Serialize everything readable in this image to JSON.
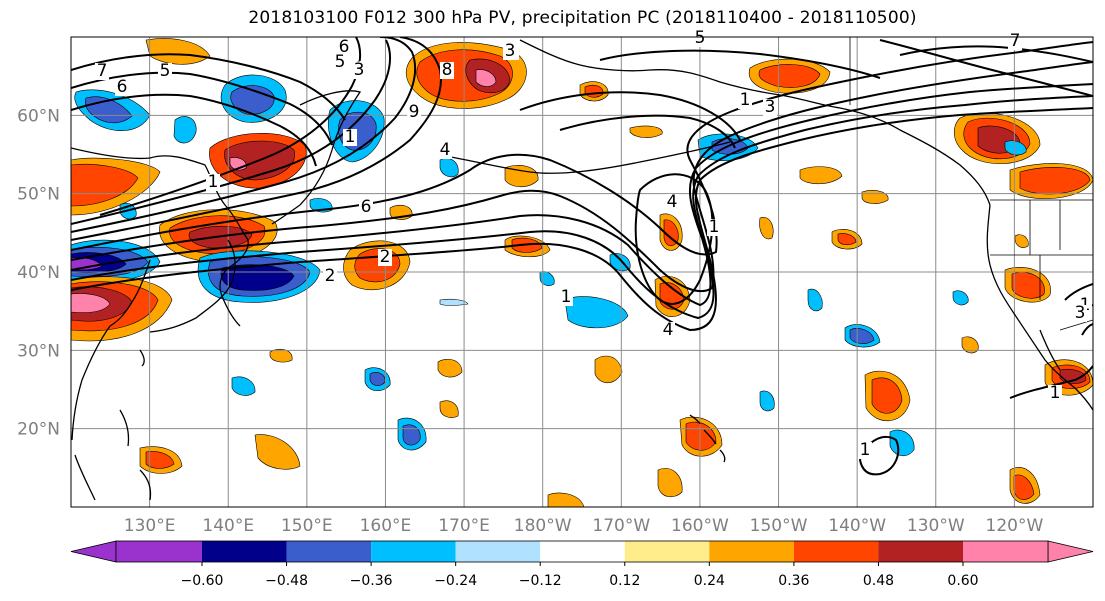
{
  "title": "2018103100 F012 300 hPa PV, precipitation PC (2018110400 - 2018110500)",
  "map": {
    "lat_range": [
      10,
      70
    ],
    "lon_range": [
      120,
      250
    ],
    "lat_labels": [
      "60°N",
      "50°N",
      "40°N",
      "30°N",
      "20°N"
    ],
    "lat_values": [
      60,
      50,
      40,
      30,
      20
    ],
    "lon_labels": [
      "130°E",
      "140°E",
      "150°E",
      "160°E",
      "170°E",
      "180°W",
      "170°W",
      "160°W",
      "150°W",
      "140°W",
      "130°W",
      "120°W"
    ],
    "lon_values": [
      130,
      140,
      150,
      160,
      170,
      180,
      190,
      200,
      210,
      220,
      230,
      240
    ],
    "gridlines": true
  },
  "pv_contour_labels": [
    "7",
    "6",
    "5",
    "6",
    "5",
    "4",
    "3",
    "9",
    "8",
    "5",
    "3",
    "6",
    "1",
    "1",
    "2",
    "1",
    "5",
    "4",
    "1",
    "1",
    "3",
    "7",
    "4",
    "4",
    "2",
    "1",
    "1",
    "3",
    "1"
  ],
  "colorbar": {
    "ticks": [
      "−0.60",
      "−0.48",
      "−0.36",
      "−0.24",
      "−0.12",
      "0.12",
      "0.24",
      "0.36",
      "0.48",
      "0.60"
    ],
    "colors": [
      "#9a32cd",
      "#00008b",
      "#3a5fcd",
      "#00bfff",
      "#b0e2ff",
      "#ffffff",
      "#ffec8b",
      "#ffa500",
      "#ff4500",
      "#b22222",
      "#ff82ab"
    ],
    "extend": "both"
  }
}
